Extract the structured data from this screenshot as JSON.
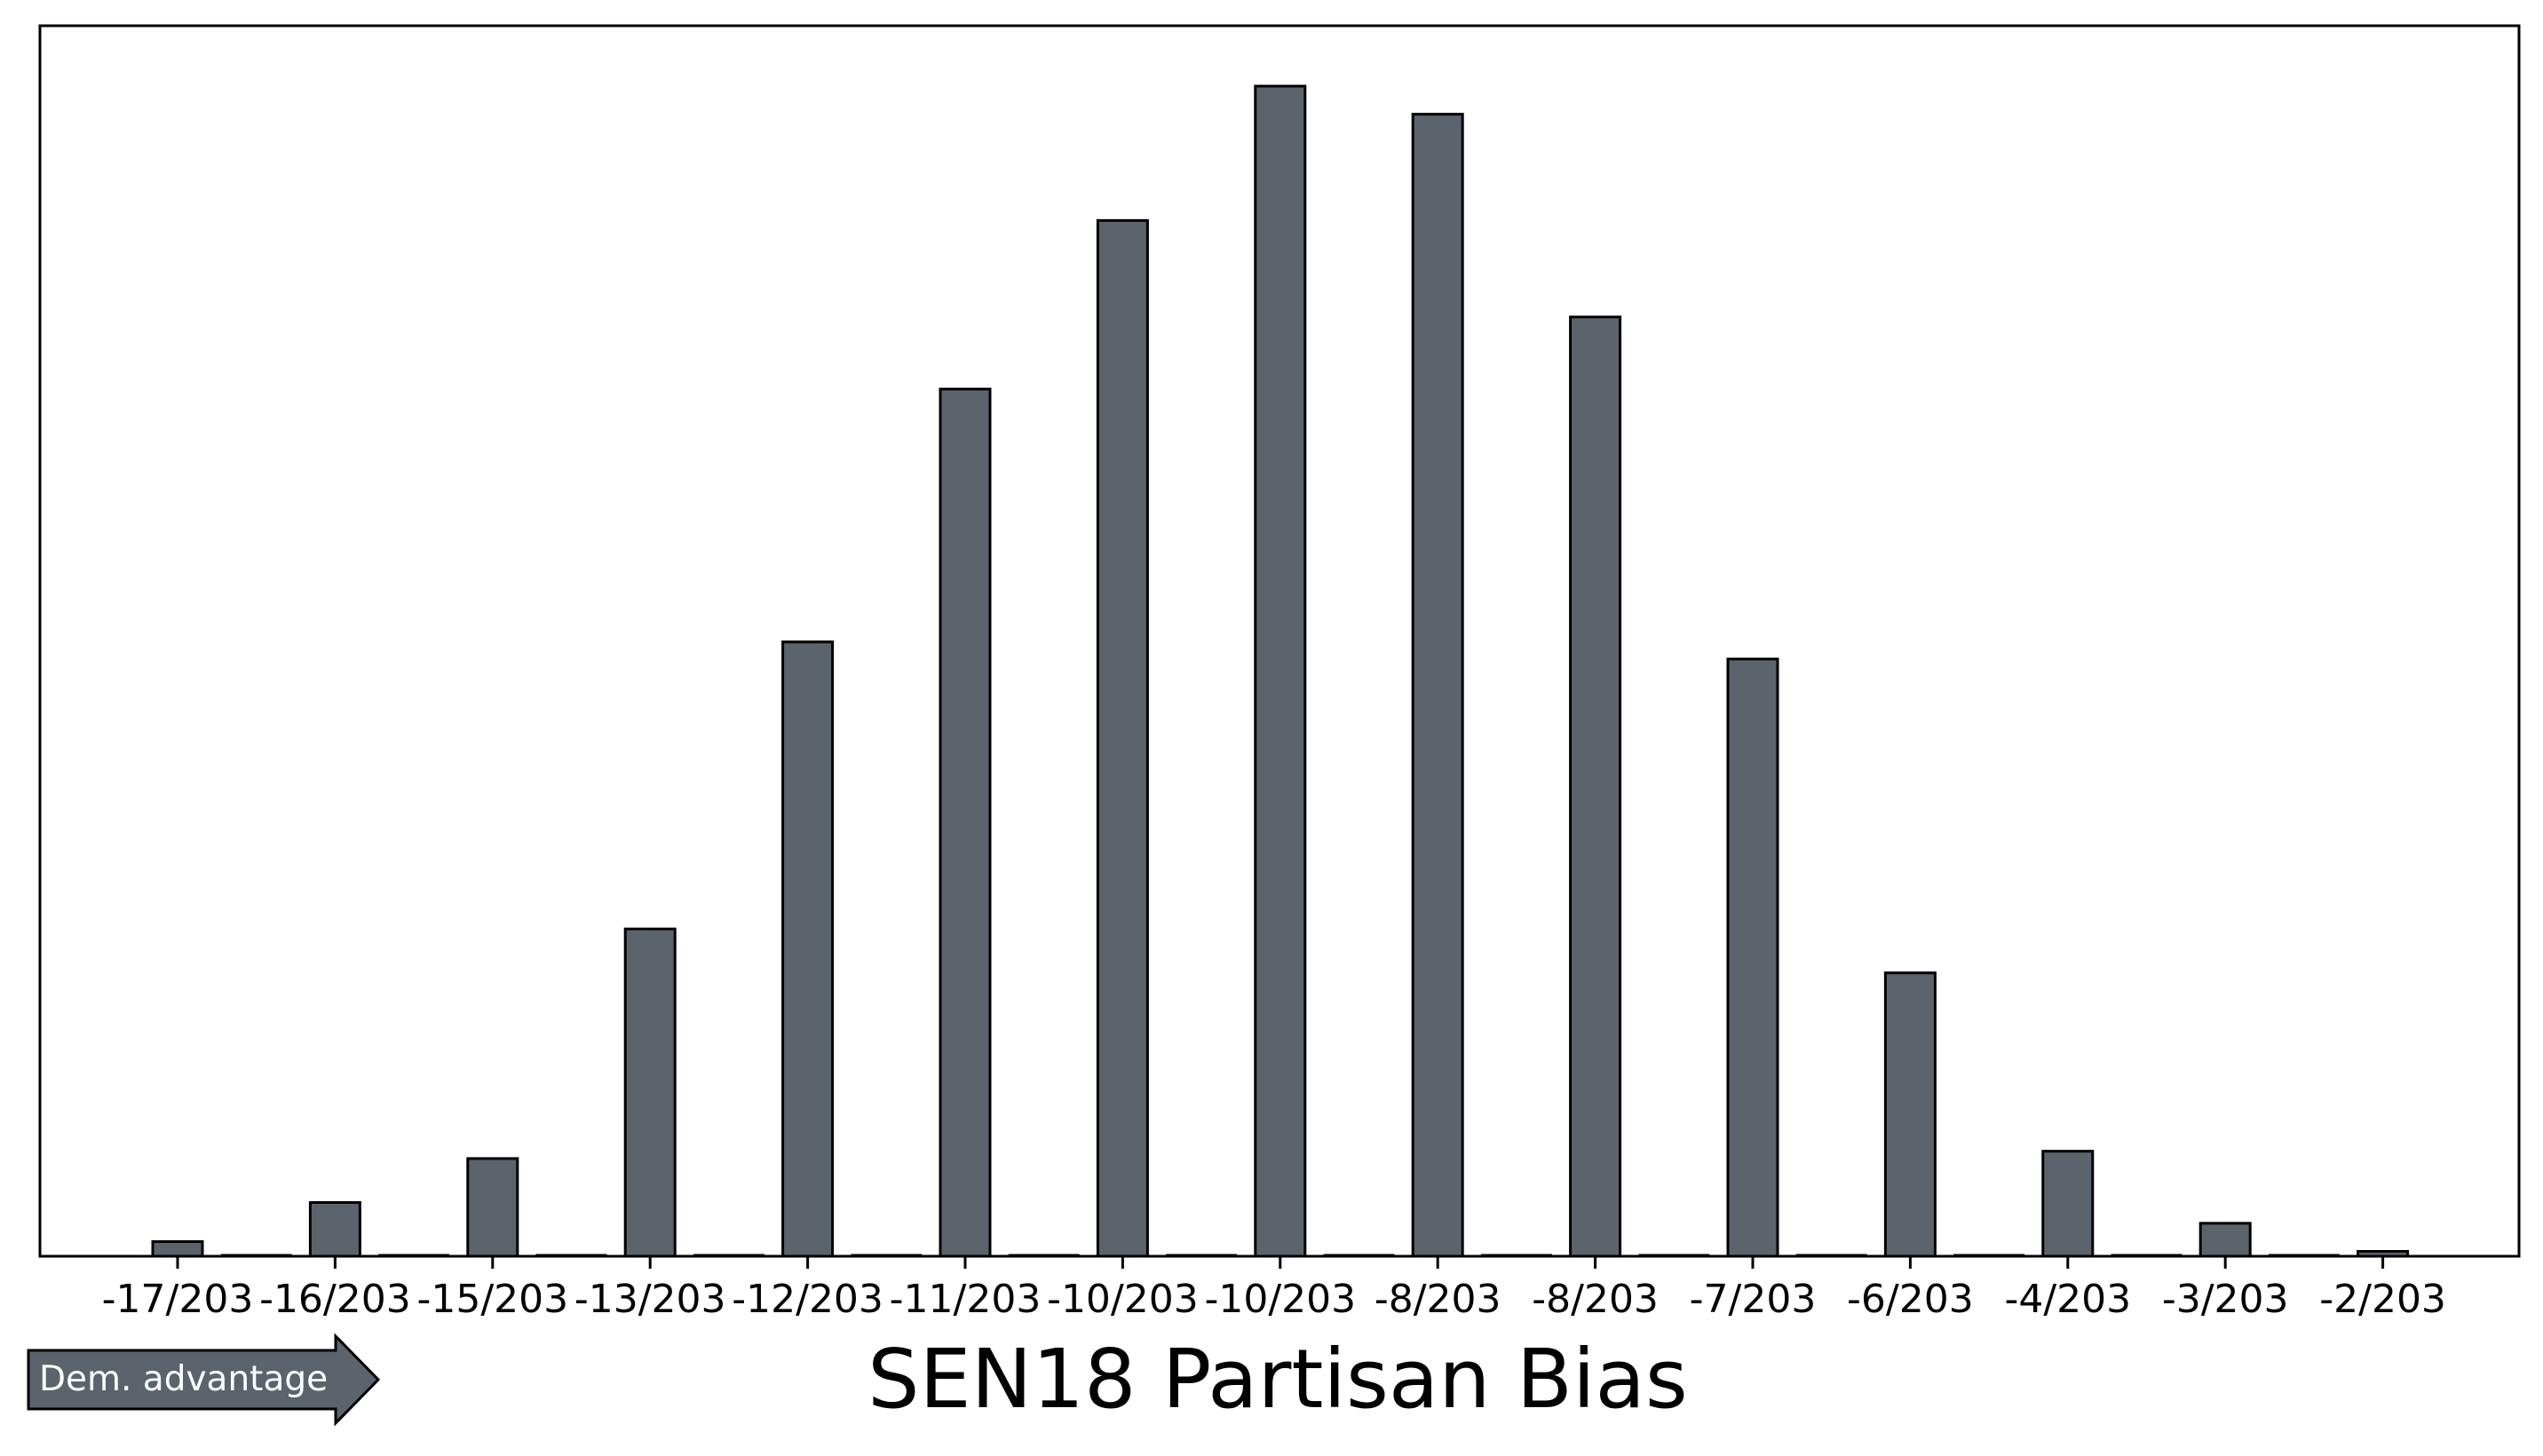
{
  "chart_data": {
    "type": "bar",
    "title": "SEN18 Partisan Bias",
    "xlabel": "",
    "ylabel": "",
    "categories": [
      "-17/203",
      "-16/203",
      "-15/203",
      "-13/203",
      "-12/203",
      "-11/203",
      "-10/203",
      "-10/203",
      "-8/203",
      "-8/203",
      "-7/203",
      "-6/203",
      "-4/203",
      "-3/203",
      "-2/203"
    ],
    "values": [
      12,
      44,
      80,
      268,
      503,
      710,
      848,
      958,
      935,
      769,
      489,
      232,
      86,
      27,
      4
    ],
    "ylim": [
      0,
      1000
    ],
    "y_ticks_shown": false,
    "grid": false,
    "bar_color": "#5b646c",
    "bar_edge_color": "#000000",
    "annotation": {
      "label": "Dem. advantage",
      "shape": "right-arrow",
      "fill": "#5b646c",
      "text_color": "#ffffff"
    }
  }
}
